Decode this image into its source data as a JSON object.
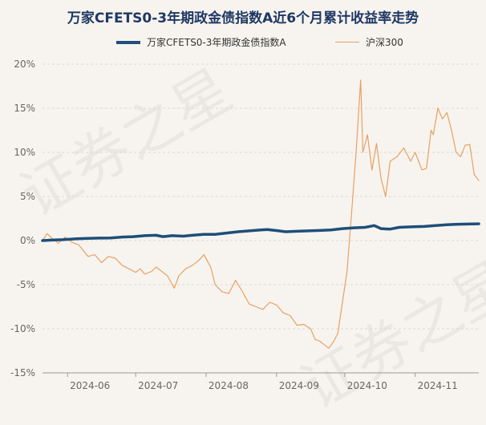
{
  "watermark": "证券之星",
  "chart_data": {
    "type": "line",
    "title": "万家CFETS0-3年期政金债指数A近6个月累计收益率走势",
    "y_ticks": [
      "20%",
      "15%",
      "10%",
      "5%",
      "0%",
      "-5%",
      "-10%",
      "-15%"
    ],
    "x_ticks": [
      "2024-06",
      "2024-07",
      "2024-08",
      "2024-09",
      "2024-10",
      "2024-11"
    ],
    "ylim": [
      -15,
      20
    ],
    "xlim": [
      "2024-05-21",
      "2024-11-29"
    ],
    "grid": true,
    "legend_position": "top",
    "series": [
      {
        "name": "万家CFETS0-3年期政金债指数A",
        "color": "#1f4e79",
        "points": [
          [
            "2024-05-21",
            0.0
          ],
          [
            "2024-05-25",
            0.05
          ],
          [
            "2024-05-30",
            0.1
          ],
          [
            "2024-06-05",
            0.2
          ],
          [
            "2024-06-10",
            0.25
          ],
          [
            "2024-06-15",
            0.28
          ],
          [
            "2024-06-20",
            0.3
          ],
          [
            "2024-06-25",
            0.4
          ],
          [
            "2024-06-30",
            0.45
          ],
          [
            "2024-07-05",
            0.55
          ],
          [
            "2024-07-10",
            0.6
          ],
          [
            "2024-07-13",
            0.45
          ],
          [
            "2024-07-17",
            0.55
          ],
          [
            "2024-07-22",
            0.5
          ],
          [
            "2024-07-26",
            0.6
          ],
          [
            "2024-07-31",
            0.7
          ],
          [
            "2024-08-05",
            0.7
          ],
          [
            "2024-08-10",
            0.85
          ],
          [
            "2024-08-15",
            1.0
          ],
          [
            "2024-08-20",
            1.1
          ],
          [
            "2024-08-25",
            1.2
          ],
          [
            "2024-08-28",
            1.25
          ],
          [
            "2024-09-02",
            1.1
          ],
          [
            "2024-09-05",
            1.0
          ],
          [
            "2024-09-10",
            1.05
          ],
          [
            "2024-09-15",
            1.1
          ],
          [
            "2024-09-20",
            1.15
          ],
          [
            "2024-09-25",
            1.2
          ],
          [
            "2024-09-30",
            1.35
          ],
          [
            "2024-10-05",
            1.45
          ],
          [
            "2024-10-10",
            1.5
          ],
          [
            "2024-10-14",
            1.7
          ],
          [
            "2024-10-17",
            1.35
          ],
          [
            "2024-10-21",
            1.3
          ],
          [
            "2024-10-25",
            1.5
          ],
          [
            "2024-10-30",
            1.55
          ],
          [
            "2024-11-05",
            1.6
          ],
          [
            "2024-11-10",
            1.7
          ],
          [
            "2024-11-15",
            1.8
          ],
          [
            "2024-11-20",
            1.85
          ],
          [
            "2024-11-29",
            1.9
          ]
        ]
      },
      {
        "name": "沪深300",
        "color": "#e8a063",
        "points": [
          [
            "2024-05-21",
            0.0
          ],
          [
            "2024-05-23",
            0.8
          ],
          [
            "2024-05-25",
            0.3
          ],
          [
            "2024-05-28",
            -0.3
          ],
          [
            "2024-05-31",
            0.4
          ],
          [
            "2024-06-03",
            -0.2
          ],
          [
            "2024-06-06",
            -0.5
          ],
          [
            "2024-06-10",
            -1.8
          ],
          [
            "2024-06-13",
            -1.6
          ],
          [
            "2024-06-16",
            -2.5
          ],
          [
            "2024-06-19",
            -1.8
          ],
          [
            "2024-06-22",
            -2.0
          ],
          [
            "2024-06-25",
            -2.8
          ],
          [
            "2024-06-28",
            -3.2
          ],
          [
            "2024-07-01",
            -3.6
          ],
          [
            "2024-07-03",
            -3.2
          ],
          [
            "2024-07-05",
            -3.8
          ],
          [
            "2024-07-08",
            -3.5
          ],
          [
            "2024-07-10",
            -3.0
          ],
          [
            "2024-07-13",
            -3.6
          ],
          [
            "2024-07-15",
            -4.0
          ],
          [
            "2024-07-18",
            -5.4
          ],
          [
            "2024-07-20",
            -4.0
          ],
          [
            "2024-07-23",
            -3.2
          ],
          [
            "2024-07-26",
            -2.8
          ],
          [
            "2024-07-29",
            -2.2
          ],
          [
            "2024-07-31",
            -1.6
          ],
          [
            "2024-08-03",
            -3.0
          ],
          [
            "2024-08-05",
            -5.0
          ],
          [
            "2024-08-08",
            -5.8
          ],
          [
            "2024-08-11",
            -6.0
          ],
          [
            "2024-08-14",
            -4.5
          ],
          [
            "2024-08-17",
            -5.8
          ],
          [
            "2024-08-20",
            -7.2
          ],
          [
            "2024-08-23",
            -7.5
          ],
          [
            "2024-08-26",
            -7.8
          ],
          [
            "2024-08-29",
            -7.0
          ],
          [
            "2024-09-01",
            -7.3
          ],
          [
            "2024-09-04",
            -8.2
          ],
          [
            "2024-09-07",
            -8.5
          ],
          [
            "2024-09-10",
            -9.6
          ],
          [
            "2024-09-13",
            -9.5
          ],
          [
            "2024-09-16",
            -10.0
          ],
          [
            "2024-09-18",
            -11.2
          ],
          [
            "2024-09-20",
            -11.4
          ],
          [
            "2024-09-22",
            -11.8
          ],
          [
            "2024-09-24",
            -12.2
          ],
          [
            "2024-09-26",
            -11.5
          ],
          [
            "2024-09-28",
            -10.5
          ],
          [
            "2024-09-30",
            -7.0
          ],
          [
            "2024-10-02",
            -3.5
          ],
          [
            "2024-10-04",
            3.0
          ],
          [
            "2024-10-06",
            10.0
          ],
          [
            "2024-10-08",
            18.2
          ],
          [
            "2024-10-09",
            10.0
          ],
          [
            "2024-10-11",
            12.0
          ],
          [
            "2024-10-13",
            8.0
          ],
          [
            "2024-10-15",
            11.0
          ],
          [
            "2024-10-17",
            7.0
          ],
          [
            "2024-10-19",
            5.0
          ],
          [
            "2024-10-21",
            9.0
          ],
          [
            "2024-10-24",
            9.5
          ],
          [
            "2024-10-27",
            10.5
          ],
          [
            "2024-10-30",
            9.0
          ],
          [
            "2024-11-01",
            10.0
          ],
          [
            "2024-11-04",
            8.0
          ],
          [
            "2024-11-06",
            8.2
          ],
          [
            "2024-11-08",
            12.5
          ],
          [
            "2024-11-09",
            12.0
          ],
          [
            "2024-11-11",
            15.0
          ],
          [
            "2024-11-13",
            13.8
          ],
          [
            "2024-11-15",
            14.5
          ],
          [
            "2024-11-17",
            12.5
          ],
          [
            "2024-11-19",
            10.0
          ],
          [
            "2024-11-21",
            9.5
          ],
          [
            "2024-11-23",
            10.8
          ],
          [
            "2024-11-25",
            10.9
          ],
          [
            "2024-11-27",
            7.5
          ],
          [
            "2024-11-29",
            6.8
          ]
        ]
      }
    ]
  }
}
